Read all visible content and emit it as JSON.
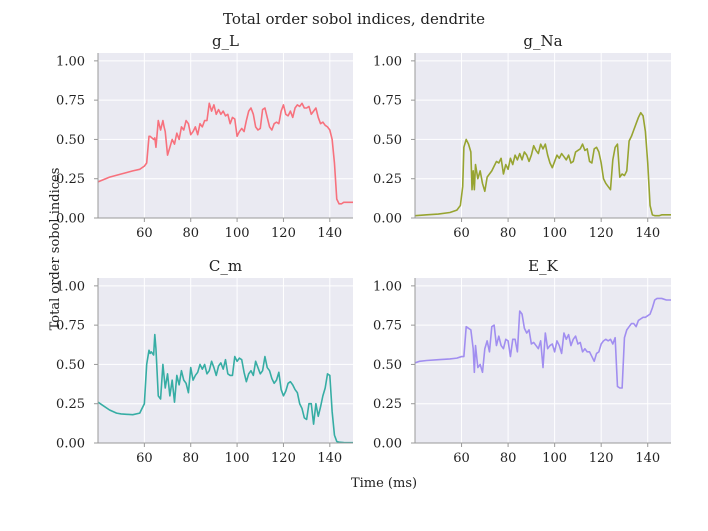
{
  "suptitle": "Total order sobol indices, dendrite",
  "ylabel": "Total order sobol indices",
  "xlabel": "Time (ms)",
  "chart_data": [
    {
      "type": "line",
      "title": "g_L",
      "color": "#f7717d",
      "xlim": [
        40,
        150
      ],
      "ylim": [
        0,
        1.05
      ],
      "xticks": [
        60,
        80,
        100,
        120,
        140
      ],
      "yticks": [
        "0.00",
        "0.25",
        "0.50",
        "0.75",
        "1.00"
      ],
      "grid": true,
      "x": [
        40,
        45,
        50,
        55,
        58,
        60,
        61,
        62,
        62.5,
        64,
        64.5,
        65,
        66,
        67,
        68,
        68.5,
        69,
        70,
        71,
        72,
        73,
        74,
        75,
        76,
        77,
        78,
        79,
        80,
        81,
        82,
        83,
        84,
        85,
        86,
        87,
        88,
        89,
        90,
        91,
        92,
        93,
        94,
        95,
        96,
        97,
        98,
        99,
        100,
        101,
        102,
        103,
        104,
        105,
        106,
        107,
        108,
        109,
        110,
        111,
        112,
        113,
        114,
        115,
        116,
        117,
        118,
        119,
        120,
        121,
        122,
        123,
        124,
        125,
        126,
        127,
        128,
        129,
        130,
        131,
        132,
        133,
        134,
        135,
        136,
        137,
        138,
        139,
        140,
        141,
        142,
        143,
        144,
        145,
        146,
        148,
        150
      ],
      "y": [
        0.23,
        0.26,
        0.28,
        0.3,
        0.31,
        0.33,
        0.35,
        0.52,
        0.52,
        0.5,
        0.51,
        0.45,
        0.62,
        0.56,
        0.62,
        0.58,
        0.55,
        0.4,
        0.45,
        0.5,
        0.47,
        0.54,
        0.5,
        0.58,
        0.56,
        0.62,
        0.6,
        0.53,
        0.55,
        0.58,
        0.53,
        0.6,
        0.58,
        0.62,
        0.62,
        0.73,
        0.68,
        0.72,
        0.66,
        0.69,
        0.66,
        0.68,
        0.65,
        0.66,
        0.6,
        0.64,
        0.63,
        0.52,
        0.55,
        0.57,
        0.55,
        0.62,
        0.68,
        0.7,
        0.66,
        0.58,
        0.56,
        0.57,
        0.69,
        0.7,
        0.64,
        0.58,
        0.56,
        0.6,
        0.61,
        0.6,
        0.68,
        0.72,
        0.66,
        0.65,
        0.68,
        0.64,
        0.7,
        0.72,
        0.71,
        0.73,
        0.7,
        0.7,
        0.71,
        0.66,
        0.68,
        0.7,
        0.64,
        0.6,
        0.61,
        0.59,
        0.58,
        0.56,
        0.5,
        0.35,
        0.12,
        0.09,
        0.09,
        0.1,
        0.1,
        0.1
      ]
    },
    {
      "type": "line",
      "title": "g_Na",
      "color": "#97a431",
      "xlim": [
        40,
        150
      ],
      "ylim": [
        0,
        1.05
      ],
      "xticks": [
        60,
        80,
        100,
        120,
        140
      ],
      "yticks": [
        "0.00",
        "0.25",
        "0.50",
        "0.75",
        "1.00"
      ],
      "grid": true,
      "x": [
        40,
        45,
        50,
        55,
        58,
        59.5,
        60.5,
        61,
        62,
        63,
        64,
        64.5,
        65,
        65.5,
        66,
        67,
        68,
        69,
        70,
        71,
        72,
        73,
        74,
        75,
        76,
        77,
        78,
        79,
        80,
        81,
        82,
        83,
        84,
        85,
        86,
        87,
        88,
        89,
        90,
        91,
        92,
        93,
        94,
        95,
        96,
        97,
        98,
        99,
        100,
        101,
        102,
        103,
        104,
        105,
        106,
        107,
        108,
        109,
        110,
        111,
        112,
        113,
        114,
        115,
        116,
        117,
        118,
        119,
        120,
        121,
        122,
        123,
        124,
        125,
        126,
        127,
        128,
        129,
        130,
        131,
        132,
        133,
        134,
        135,
        136,
        137,
        138,
        139,
        140,
        141,
        142,
        143,
        144,
        145,
        146,
        148,
        150
      ],
      "y": [
        0.015,
        0.02,
        0.025,
        0.035,
        0.05,
        0.08,
        0.2,
        0.45,
        0.5,
        0.47,
        0.42,
        0.18,
        0.3,
        0.18,
        0.34,
        0.25,
        0.3,
        0.22,
        0.17,
        0.26,
        0.28,
        0.3,
        0.33,
        0.36,
        0.35,
        0.38,
        0.28,
        0.34,
        0.31,
        0.38,
        0.34,
        0.4,
        0.37,
        0.41,
        0.37,
        0.42,
        0.4,
        0.36,
        0.4,
        0.46,
        0.43,
        0.41,
        0.47,
        0.44,
        0.47,
        0.4,
        0.35,
        0.32,
        0.36,
        0.4,
        0.38,
        0.41,
        0.39,
        0.37,
        0.4,
        0.35,
        0.36,
        0.42,
        0.43,
        0.44,
        0.47,
        0.43,
        0.44,
        0.36,
        0.35,
        0.44,
        0.45,
        0.42,
        0.35,
        0.25,
        0.22,
        0.2,
        0.18,
        0.37,
        0.45,
        0.47,
        0.26,
        0.28,
        0.27,
        0.3,
        0.49,
        0.52,
        0.56,
        0.6,
        0.64,
        0.67,
        0.65,
        0.55,
        0.35,
        0.08,
        0.02,
        0.015,
        0.015,
        0.015,
        0.02,
        0.02,
        0.02
      ]
    },
    {
      "type": "line",
      "title": "C_m",
      "color": "#36ada4",
      "xlim": [
        40,
        150
      ],
      "ylim": [
        0,
        1.05
      ],
      "xticks": [
        60,
        80,
        100,
        120,
        140
      ],
      "yticks": [
        "0.00",
        "0.25",
        "0.50",
        "0.75",
        "1.00"
      ],
      "grid": true,
      "x": [
        40,
        42,
        45,
        48,
        50,
        55,
        58,
        60,
        61,
        62,
        62.5,
        63,
        64,
        64.5,
        65,
        66,
        67,
        68,
        69,
        70,
        71,
        72,
        73,
        74,
        75,
        76,
        77,
        78,
        79,
        80,
        81,
        82,
        83,
        84,
        85,
        86,
        87,
        88,
        89,
        90,
        91,
        92,
        93,
        94,
        95,
        96,
        97,
        98,
        99,
        100,
        101,
        102,
        103,
        104,
        105,
        106,
        107,
        108,
        109,
        110,
        111,
        112,
        113,
        114,
        115,
        116,
        117,
        118,
        119,
        120,
        121,
        122,
        123,
        124,
        125,
        126,
        127,
        128,
        129,
        130,
        131,
        132,
        133,
        134,
        135,
        136,
        137,
        138,
        139,
        140,
        141,
        142,
        143,
        144,
        146,
        148,
        150
      ],
      "y": [
        0.26,
        0.24,
        0.21,
        0.19,
        0.185,
        0.18,
        0.19,
        0.25,
        0.5,
        0.59,
        0.57,
        0.58,
        0.56,
        0.69,
        0.6,
        0.3,
        0.28,
        0.5,
        0.35,
        0.44,
        0.3,
        0.4,
        0.26,
        0.43,
        0.37,
        0.46,
        0.4,
        0.38,
        0.32,
        0.48,
        0.4,
        0.43,
        0.45,
        0.5,
        0.47,
        0.5,
        0.44,
        0.46,
        0.52,
        0.48,
        0.43,
        0.49,
        0.51,
        0.47,
        0.53,
        0.44,
        0.43,
        0.43,
        0.55,
        0.52,
        0.54,
        0.53,
        0.45,
        0.39,
        0.44,
        0.46,
        0.43,
        0.52,
        0.48,
        0.44,
        0.46,
        0.55,
        0.48,
        0.46,
        0.41,
        0.38,
        0.4,
        0.45,
        0.34,
        0.3,
        0.33,
        0.38,
        0.39,
        0.37,
        0.34,
        0.32,
        0.25,
        0.22,
        0.16,
        0.15,
        0.25,
        0.25,
        0.12,
        0.25,
        0.17,
        0.23,
        0.3,
        0.35,
        0.44,
        0.43,
        0.2,
        0.05,
        0.01,
        0.005,
        0.003,
        0.002,
        0.002
      ]
    },
    {
      "type": "line",
      "title": "E_K",
      "color": "#a18ef0",
      "xlim": [
        40,
        150
      ],
      "ylim": [
        0,
        1.05
      ],
      "xticks": [
        60,
        80,
        100,
        120,
        140
      ],
      "yticks": [
        "0.00",
        "0.25",
        "0.50",
        "0.75",
        "1.00"
      ],
      "grid": true,
      "x": [
        40,
        42,
        45,
        50,
        55,
        58,
        60,
        61,
        62,
        63,
        64,
        65,
        65.5,
        66,
        67,
        68,
        69,
        70,
        71,
        72,
        73,
        74,
        75,
        76,
        77,
        78,
        79,
        80,
        81,
        82,
        83,
        84,
        85,
        86,
        87,
        88,
        89,
        90,
        91,
        92,
        93,
        94,
        95,
        96,
        97,
        98,
        99,
        100,
        101,
        102,
        103,
        104,
        105,
        106,
        107,
        108,
        109,
        110,
        111,
        112,
        113,
        114,
        115,
        116,
        117,
        118,
        119,
        120,
        121,
        122,
        123,
        124,
        125,
        126,
        127,
        128,
        129,
        130,
        131,
        132,
        133,
        134,
        135,
        136,
        137,
        138,
        139,
        140,
        141,
        142,
        143,
        144,
        145,
        146,
        148,
        150
      ],
      "y": [
        0.51,
        0.52,
        0.525,
        0.53,
        0.535,
        0.54,
        0.55,
        0.55,
        0.74,
        0.73,
        0.72,
        0.6,
        0.45,
        0.62,
        0.48,
        0.5,
        0.45,
        0.6,
        0.65,
        0.58,
        0.74,
        0.75,
        0.62,
        0.68,
        0.62,
        0.6,
        0.66,
        0.65,
        0.55,
        0.66,
        0.66,
        0.58,
        0.84,
        0.82,
        0.73,
        0.7,
        0.72,
        0.63,
        0.64,
        0.62,
        0.6,
        0.65,
        0.48,
        0.7,
        0.6,
        0.62,
        0.63,
        0.58,
        0.65,
        0.62,
        0.57,
        0.7,
        0.66,
        0.69,
        0.62,
        0.66,
        0.68,
        0.63,
        0.64,
        0.58,
        0.6,
        0.58,
        0.58,
        0.55,
        0.52,
        0.57,
        0.58,
        0.63,
        0.65,
        0.66,
        0.65,
        0.66,
        0.63,
        0.67,
        0.36,
        0.35,
        0.35,
        0.67,
        0.72,
        0.74,
        0.76,
        0.76,
        0.74,
        0.78,
        0.79,
        0.8,
        0.8,
        0.81,
        0.82,
        0.86,
        0.91,
        0.92,
        0.92,
        0.92,
        0.91,
        0.91
      ]
    }
  ]
}
